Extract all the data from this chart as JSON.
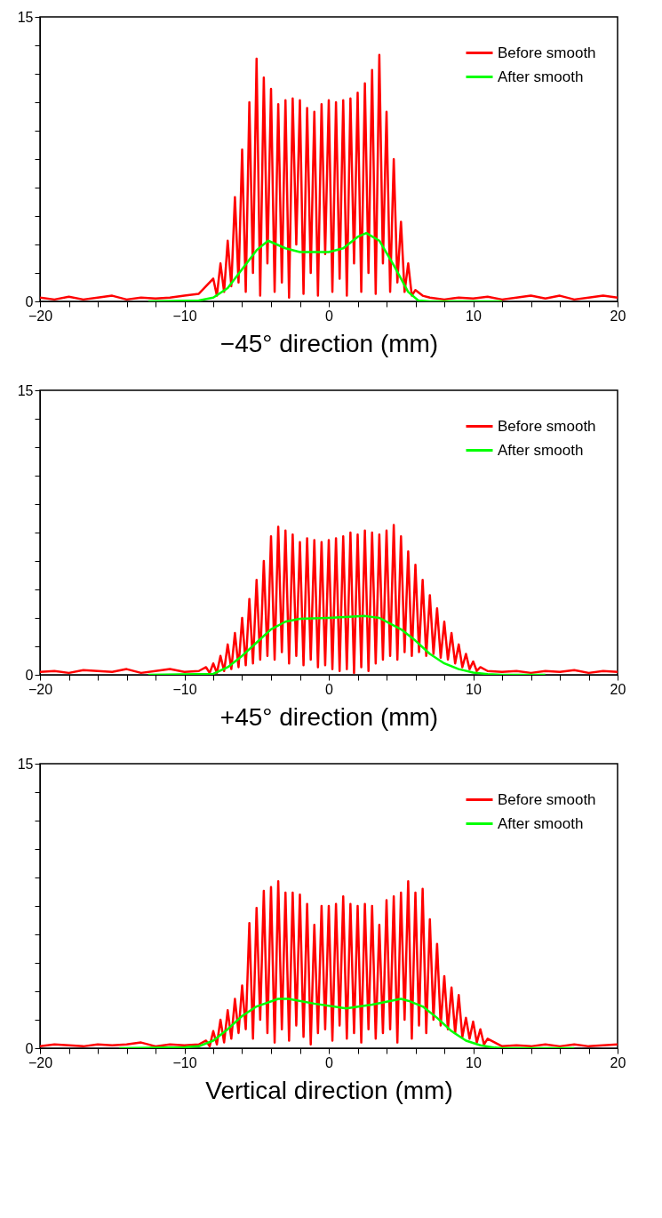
{
  "chart_data": [
    {
      "type": "line",
      "xlabel": "−45° direction (mm)",
      "xlim": [
        -20,
        20
      ],
      "ylim": [
        0,
        15
      ],
      "grid": false,
      "legend": "top right",
      "marker": "none",
      "line_style": "solid",
      "xticks": [
        -20,
        {
          "value": -18,
          "label": null
        },
        {
          "value": -16,
          "label": null
        },
        {
          "value": -14,
          "label": null
        },
        {
          "value": -12,
          "label": null
        },
        -10,
        {
          "value": -8,
          "label": null
        },
        {
          "value": -6,
          "label": null
        },
        {
          "value": -4,
          "label": null
        },
        {
          "value": -2,
          "label": null
        },
        0,
        {
          "value": 2,
          "label": null
        },
        {
          "value": 4,
          "label": null
        },
        {
          "value": 6,
          "label": null
        },
        {
          "value": 8,
          "label": null
        },
        10,
        {
          "value": 12,
          "label": null
        },
        {
          "value": 14,
          "label": null
        },
        {
          "value": 16,
          "label": null
        },
        {
          "value": 18,
          "label": null
        },
        20
      ],
      "yticks": [
        0,
        {
          "value": 1.5,
          "label": null
        },
        {
          "value": 3,
          "label": null
        },
        {
          "value": 4.5,
          "label": null
        },
        {
          "value": 6,
          "label": null
        },
        {
          "value": 7.5,
          "label": null
        },
        {
          "value": 9,
          "label": null
        },
        {
          "value": 10.5,
          "label": null
        },
        {
          "value": 12,
          "label": null
        },
        {
          "value": 13.5,
          "label": null
        },
        15
      ],
      "series": [
        {
          "name": "Before smooth",
          "color": "#ff0000",
          "x": [
            -20,
            -19,
            -18,
            -17,
            -16,
            -15,
            -14,
            -13,
            -12,
            -11,
            -10,
            -9,
            -8.5,
            -8,
            -7.75,
            -7.5,
            -7.25,
            -7,
            -6.75,
            -6.5,
            -6.25,
            -6,
            -5.75,
            -5.5,
            -5.25,
            -5,
            -4.75,
            -4.5,
            -4.25,
            -4,
            -3.75,
            -3.5,
            -3.25,
            -3,
            -2.75,
            -2.5,
            -2.25,
            -2,
            -1.75,
            -1.5,
            -1.25,
            -1,
            -0.75,
            -0.5,
            -0.25,
            0,
            0.25,
            0.5,
            0.75,
            1,
            1.25,
            1.5,
            1.75,
            2,
            2.25,
            2.5,
            2.75,
            3,
            3.25,
            3.5,
            3.75,
            4,
            4.25,
            4.5,
            4.75,
            5,
            5.25,
            5.5,
            5.75,
            6,
            6.5,
            7,
            8,
            9,
            10,
            11,
            12,
            13,
            14,
            15,
            16,
            17,
            18,
            19,
            20
          ],
          "values": [
            0.2,
            0.1,
            0.25,
            0.1,
            0.2,
            0.3,
            0.1,
            0.2,
            0.15,
            0.2,
            0.3,
            0.4,
            0.8,
            1.2,
            0.3,
            2.0,
            0.5,
            3.2,
            0.8,
            5.5,
            1.0,
            8.0,
            0.5,
            10.5,
            1.5,
            12.8,
            0.3,
            11.8,
            2.0,
            11.2,
            0.5,
            10.4,
            1.0,
            10.6,
            0.2,
            10.7,
            3.0,
            10.6,
            0.4,
            10.2,
            1.5,
            10.0,
            0.3,
            10.4,
            2.5,
            10.6,
            0.5,
            10.5,
            1.2,
            10.6,
            0.3,
            10.7,
            2.0,
            11.0,
            0.5,
            11.5,
            1.5,
            12.2,
            0.4,
            13.0,
            2.0,
            10.0,
            0.5,
            7.5,
            1.0,
            4.2,
            0.5,
            2.0,
            0.3,
            0.6,
            0.3,
            0.2,
            0.1,
            0.2,
            0.15,
            0.25,
            0.1,
            0.2,
            0.3,
            0.15,
            0.3,
            0.1,
            0.2,
            0.3,
            0.2
          ]
        },
        {
          "name": "After smooth",
          "color": "#00ff00",
          "x": [
            -12.5,
            -9,
            -8,
            -7,
            -6,
            -5,
            -4.2,
            -3,
            -2,
            0,
            1,
            2,
            2.6,
            3.5,
            4.5,
            5.5,
            6.2,
            7,
            12
          ],
          "values": [
            0,
            0.05,
            0.2,
            0.7,
            1.7,
            2.7,
            3.2,
            2.8,
            2.6,
            2.6,
            2.8,
            3.4,
            3.6,
            3.2,
            1.9,
            0.5,
            0.05,
            0,
            0
          ]
        }
      ]
    },
    {
      "type": "line",
      "xlabel": "+45° direction (mm)",
      "xlim": [
        -20,
        20
      ],
      "ylim": [
        0,
        15
      ],
      "grid": false,
      "legend": "top right",
      "marker": "none",
      "line_style": "solid",
      "xticks": [
        -20,
        {
          "value": -18,
          "label": null
        },
        {
          "value": -16,
          "label": null
        },
        {
          "value": -14,
          "label": null
        },
        {
          "value": -12,
          "label": null
        },
        -10,
        {
          "value": -8,
          "label": null
        },
        {
          "value": -6,
          "label": null
        },
        {
          "value": -4,
          "label": null
        },
        {
          "value": -2,
          "label": null
        },
        0,
        {
          "value": 2,
          "label": null
        },
        {
          "value": 4,
          "label": null
        },
        {
          "value": 6,
          "label": null
        },
        {
          "value": 8,
          "label": null
        },
        10,
        {
          "value": 12,
          "label": null
        },
        {
          "value": 14,
          "label": null
        },
        {
          "value": 16,
          "label": null
        },
        {
          "value": 18,
          "label": null
        },
        20
      ],
      "yticks": [
        0,
        {
          "value": 1.5,
          "label": null
        },
        {
          "value": 3,
          "label": null
        },
        {
          "value": 4.5,
          "label": null
        },
        {
          "value": 6,
          "label": null
        },
        {
          "value": 7.5,
          "label": null
        },
        {
          "value": 9,
          "label": null
        },
        {
          "value": 10.5,
          "label": null
        },
        {
          "value": 12,
          "label": null
        },
        {
          "value": 13.5,
          "label": null
        },
        15
      ],
      "series": [
        {
          "name": "Before smooth",
          "color": "#ff0000",
          "x": [
            -20,
            -19,
            -18,
            -17,
            -16,
            -15,
            -14,
            -13,
            -12,
            -11,
            -10,
            -9,
            -8.5,
            -8.25,
            -8,
            -7.75,
            -7.5,
            -7.25,
            -7,
            -6.75,
            -6.5,
            -6.25,
            -6,
            -5.75,
            -5.5,
            -5.25,
            -5,
            -4.75,
            -4.5,
            -4.25,
            -4,
            -3.75,
            -3.5,
            -3.25,
            -3,
            -2.75,
            -2.5,
            -2.25,
            -2,
            -1.75,
            -1.5,
            -1.25,
            -1,
            -0.75,
            -0.5,
            -0.25,
            0,
            0.25,
            0.5,
            0.75,
            1,
            1.25,
            1.5,
            1.75,
            2,
            2.25,
            2.5,
            2.75,
            3,
            3.25,
            3.5,
            3.75,
            4,
            4.25,
            4.5,
            4.75,
            5,
            5.25,
            5.5,
            5.75,
            6,
            6.25,
            6.5,
            6.75,
            7,
            7.25,
            7.5,
            7.75,
            8,
            8.25,
            8.5,
            8.75,
            9,
            9.25,
            9.5,
            9.75,
            10,
            10.25,
            10.5,
            11,
            12,
            13,
            14,
            15,
            16,
            17,
            18,
            19,
            20
          ],
          "values": [
            0.15,
            0.2,
            0.1,
            0.25,
            0.2,
            0.15,
            0.3,
            0.1,
            0.2,
            0.3,
            0.15,
            0.2,
            0.4,
            0.1,
            0.6,
            0.1,
            1.0,
            0.2,
            1.6,
            0.3,
            2.2,
            0.4,
            3.0,
            0.5,
            4.0,
            0.6,
            5.0,
            0.8,
            6.0,
            1.0,
            7.3,
            0.8,
            7.8,
            1.2,
            7.6,
            0.6,
            7.4,
            1.0,
            7.0,
            0.5,
            7.2,
            0.8,
            7.1,
            0.4,
            7.0,
            0.5,
            7.1,
            0.3,
            7.2,
            0.2,
            7.3,
            0.3,
            7.5,
            0.1,
            7.4,
            0.4,
            7.6,
            0.2,
            7.5,
            0.6,
            7.4,
            0.8,
            7.6,
            1.0,
            7.9,
            0.8,
            7.3,
            1.2,
            6.5,
            1.0,
            5.8,
            1.2,
            5.0,
            1.0,
            4.2,
            1.1,
            3.5,
            0.9,
            2.8,
            0.8,
            2.2,
            0.6,
            1.6,
            0.4,
            1.1,
            0.3,
            0.7,
            0.2,
            0.4,
            0.2,
            0.15,
            0.2,
            0.1,
            0.2,
            0.15,
            0.25,
            0.1,
            0.2,
            0.15
          ]
        },
        {
          "name": "After smooth",
          "color": "#00ff00",
          "x": [
            -12.5,
            -8,
            -7,
            -6,
            -5,
            -4,
            -3,
            -2,
            0,
            2.5,
            3.5,
            5,
            6,
            7,
            8,
            9,
            10,
            11,
            12,
            15
          ],
          "values": [
            0,
            0.05,
            0.4,
            1.0,
            1.7,
            2.4,
            2.8,
            2.95,
            3.0,
            3.1,
            3.0,
            2.4,
            1.8,
            1.1,
            0.6,
            0.3,
            0.12,
            0.04,
            0,
            0
          ]
        }
      ]
    },
    {
      "type": "line",
      "xlabel": "Vertical direction (mm)",
      "xlim": [
        -20,
        20
      ],
      "ylim": [
        0,
        15
      ],
      "grid": false,
      "legend": "top right",
      "marker": "none",
      "line_style": "solid",
      "xticks": [
        -20,
        {
          "value": -18,
          "label": null
        },
        {
          "value": -16,
          "label": null
        },
        {
          "value": -14,
          "label": null
        },
        {
          "value": -12,
          "label": null
        },
        -10,
        {
          "value": -8,
          "label": null
        },
        {
          "value": -6,
          "label": null
        },
        {
          "value": -4,
          "label": null
        },
        {
          "value": -2,
          "label": null
        },
        0,
        {
          "value": 2,
          "label": null
        },
        {
          "value": 4,
          "label": null
        },
        {
          "value": 6,
          "label": null
        },
        {
          "value": 8,
          "label": null
        },
        10,
        {
          "value": 12,
          "label": null
        },
        {
          "value": 14,
          "label": null
        },
        {
          "value": 16,
          "label": null
        },
        {
          "value": 18,
          "label": null
        },
        20
      ],
      "yticks": [
        0,
        {
          "value": 1.5,
          "label": null
        },
        {
          "value": 3,
          "label": null
        },
        {
          "value": 4.5,
          "label": null
        },
        {
          "value": 6,
          "label": null
        },
        {
          "value": 7.5,
          "label": null
        },
        {
          "value": 9,
          "label": null
        },
        {
          "value": 10.5,
          "label": null
        },
        {
          "value": 12,
          "label": null
        },
        {
          "value": 13.5,
          "label": null
        },
        15
      ],
      "series": [
        {
          "name": "Before smooth",
          "color": "#ff0000",
          "x": [
            -20,
            -19,
            -18,
            -17,
            -16,
            -15,
            -14,
            -13,
            -12,
            -11,
            -10,
            -9,
            -8.5,
            -8.25,
            -8,
            -7.75,
            -7.5,
            -7.25,
            -7,
            -6.75,
            -6.5,
            -6.25,
            -6,
            -5.75,
            -5.5,
            -5.25,
            -5,
            -4.75,
            -4.5,
            -4.25,
            -4,
            -3.75,
            -3.5,
            -3.25,
            -3,
            -2.75,
            -2.5,
            -2.25,
            -2,
            -1.75,
            -1.5,
            -1.25,
            -1,
            -0.75,
            -0.5,
            -0.25,
            0,
            0.25,
            0.5,
            0.75,
            1,
            1.25,
            1.5,
            1.75,
            2,
            2.25,
            2.5,
            2.75,
            3,
            3.25,
            3.5,
            3.75,
            4,
            4.25,
            4.5,
            4.75,
            5,
            5.25,
            5.5,
            5.75,
            6,
            6.25,
            6.5,
            6.75,
            7,
            7.25,
            7.5,
            7.75,
            8,
            8.25,
            8.5,
            8.75,
            9,
            9.25,
            9.5,
            9.75,
            10,
            10.25,
            10.5,
            10.75,
            11,
            11.5,
            12,
            13,
            14,
            15,
            16,
            17,
            18,
            19,
            20
          ],
          "values": [
            0.1,
            0.2,
            0.15,
            0.1,
            0.2,
            0.15,
            0.2,
            0.3,
            0.1,
            0.2,
            0.15,
            0.2,
            0.4,
            0.1,
            0.9,
            0.2,
            1.5,
            0.3,
            2.0,
            0.5,
            2.6,
            0.8,
            3.3,
            1.0,
            6.6,
            0.5,
            7.4,
            1.5,
            8.3,
            0.8,
            8.5,
            0.3,
            8.8,
            1.0,
            8.2,
            0.4,
            8.2,
            1.2,
            8.1,
            0.6,
            7.6,
            0.2,
            6.5,
            0.8,
            7.5,
            1.0,
            7.5,
            0.4,
            7.6,
            1.2,
            8.0,
            0.5,
            7.6,
            0.8,
            7.5,
            0.3,
            7.6,
            1.0,
            7.5,
            0.5,
            6.5,
            0.8,
            7.8,
            1.0,
            8.0,
            0.3,
            8.2,
            1.5,
            8.8,
            0.5,
            8.2,
            1.2,
            8.4,
            0.8,
            6.8,
            1.5,
            5.5,
            1.2,
            3.8,
            1.0,
            3.2,
            0.8,
            2.8,
            0.6,
            1.6,
            0.5,
            1.4,
            0.3,
            1.0,
            0.2,
            0.5,
            0.3,
            0.1,
            0.15,
            0.1,
            0.2,
            0.1,
            0.2,
            0.1,
            0.15,
            0.2
          ]
        },
        {
          "name": "After smooth",
          "color": "#00ff00",
          "x": [
            -14.5,
            -10,
            -9,
            -8,
            -7,
            -6,
            -5,
            -3.5,
            -2.8,
            -1,
            1.2,
            3,
            5,
            5.5,
            6.5,
            7.5,
            8.5,
            9.5,
            10.5,
            11.5,
            12,
            17
          ],
          "values": [
            0,
            0.05,
            0.1,
            0.4,
            1.0,
            1.7,
            2.2,
            2.6,
            2.6,
            2.35,
            2.1,
            2.3,
            2.6,
            2.5,
            2.2,
            1.6,
            0.9,
            0.4,
            0.15,
            0.03,
            0,
            0
          ]
        }
      ]
    }
  ]
}
